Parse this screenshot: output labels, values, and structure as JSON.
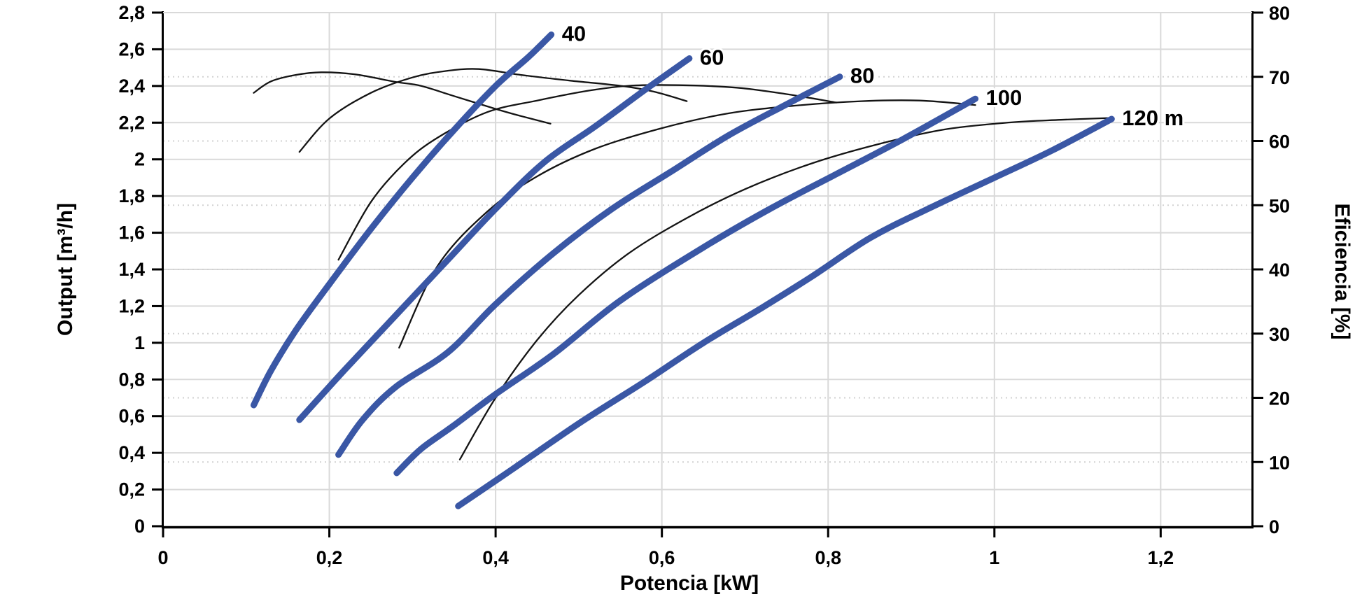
{
  "style": {
    "background": "#ffffff",
    "head_curve_color": "#3a57a5",
    "efficiency_curve_color": "#141414",
    "grid_solid_color": "#d9d9d9",
    "grid_dotted_color": "#d2d2d2",
    "axis_color": "#000000",
    "text_color": "#000000"
  },
  "chart_data": {
    "type": "line",
    "title": "",
    "xlabel": "Potencia [kW]",
    "ylabel_left": "Output [m³/h]",
    "ylabel_right": "Eficiencia [%]",
    "xlim": [
      0,
      1.31
    ],
    "ylim_left": [
      0,
      2.8
    ],
    "ylim_right": [
      0,
      80
    ],
    "grid": {
      "vertical_solid_step_kw": 0.2,
      "horizontal_solid_step": 0.2,
      "horizontal_dotted_at_right_ticks": true
    },
    "x_ticks": [
      {
        "value": 0,
        "label": "0"
      },
      {
        "value": 0.2,
        "label": "0,2"
      },
      {
        "value": 0.4,
        "label": "0,4"
      },
      {
        "value": 0.6,
        "label": "0,6"
      },
      {
        "value": 0.8,
        "label": "0,8"
      },
      {
        "value": 1,
        "label": "1"
      },
      {
        "value": 1.2,
        "label": "1,2"
      }
    ],
    "y_ticks_left": [
      {
        "value": 0,
        "label": "0"
      },
      {
        "value": 0.2,
        "label": "0,2"
      },
      {
        "value": 0.4,
        "label": "0,4"
      },
      {
        "value": 0.6,
        "label": "0,6"
      },
      {
        "value": 0.8,
        "label": "0,8"
      },
      {
        "value": 1,
        "label": "1"
      },
      {
        "value": 1.2,
        "label": "1,2"
      },
      {
        "value": 1.4,
        "label": "1,4"
      },
      {
        "value": 1.6,
        "label": "1,6"
      },
      {
        "value": 1.8,
        "label": "1,8"
      },
      {
        "value": 2,
        "label": "2"
      },
      {
        "value": 2.2,
        "label": "2,2"
      },
      {
        "value": 2.4,
        "label": "2,4"
      },
      {
        "value": 2.6,
        "label": "2,6"
      },
      {
        "value": 2.8,
        "label": "2,8"
      }
    ],
    "y_ticks_right": [
      {
        "value": 0,
        "label": "0"
      },
      {
        "value": 10,
        "label": "10"
      },
      {
        "value": 20,
        "label": "20"
      },
      {
        "value": 30,
        "label": "30"
      },
      {
        "value": 40,
        "label": "40"
      },
      {
        "value": 50,
        "label": "50"
      },
      {
        "value": 60,
        "label": "60"
      },
      {
        "value": 70,
        "label": "70"
      },
      {
        "value": 80,
        "label": "80"
      }
    ],
    "head_curves": [
      {
        "name": "40",
        "label": "40",
        "points": [
          [
            0.109,
            0.66
          ],
          [
            0.13,
            0.85
          ],
          [
            0.16,
            1.07
          ],
          [
            0.2,
            1.32
          ],
          [
            0.25,
            1.62
          ],
          [
            0.3,
            1.9
          ],
          [
            0.35,
            2.16
          ],
          [
            0.4,
            2.4
          ],
          [
            0.44,
            2.56
          ],
          [
            0.467,
            2.68
          ]
        ]
      },
      {
        "name": "60",
        "label": "60",
        "points": [
          [
            0.164,
            0.58
          ],
          [
            0.22,
            0.86
          ],
          [
            0.28,
            1.15
          ],
          [
            0.34,
            1.44
          ],
          [
            0.4,
            1.73
          ],
          [
            0.46,
            1.99
          ],
          [
            0.52,
            2.18
          ],
          [
            0.58,
            2.38
          ],
          [
            0.633,
            2.55
          ]
        ]
      },
      {
        "name": "80",
        "label": "80",
        "points": [
          [
            0.211,
            0.39
          ],
          [
            0.24,
            0.58
          ],
          [
            0.28,
            0.76
          ],
          [
            0.343,
            0.95
          ],
          [
            0.4,
            1.21
          ],
          [
            0.47,
            1.49
          ],
          [
            0.54,
            1.73
          ],
          [
            0.61,
            1.93
          ],
          [
            0.68,
            2.13
          ],
          [
            0.75,
            2.3
          ],
          [
            0.814,
            2.45
          ]
        ]
      },
      {
        "name": "100",
        "label": "100",
        "points": [
          [
            0.281,
            0.29
          ],
          [
            0.31,
            0.42
          ],
          [
            0.35,
            0.55
          ],
          [
            0.4,
            0.72
          ],
          [
            0.47,
            0.94
          ],
          [
            0.55,
            1.23
          ],
          [
            0.65,
            1.52
          ],
          [
            0.73,
            1.73
          ],
          [
            0.81,
            1.92
          ],
          [
            0.89,
            2.11
          ],
          [
            0.977,
            2.33
          ]
        ]
      },
      {
        "name": "120",
        "label": "120 m",
        "points": [
          [
            0.355,
            0.11
          ],
          [
            0.42,
            0.31
          ],
          [
            0.5,
            0.56
          ],
          [
            0.58,
            0.79
          ],
          [
            0.65,
            1.0
          ],
          [
            0.72,
            1.19
          ],
          [
            0.78,
            1.36
          ],
          [
            0.85,
            1.57
          ],
          [
            0.92,
            1.73
          ],
          [
            1.0,
            1.9
          ],
          [
            1.07,
            2.05
          ],
          [
            1.141,
            2.22
          ]
        ]
      }
    ],
    "efficiency_curves": [
      {
        "name": "eff-40",
        "head": "40",
        "points_pct": [
          [
            0.109,
            67.5
          ],
          [
            0.13,
            69.3
          ],
          [
            0.16,
            70.3
          ],
          [
            0.19,
            70.7
          ],
          [
            0.23,
            70.4
          ],
          [
            0.28,
            69.2
          ],
          [
            0.31,
            68.6
          ],
          [
            0.35,
            67.0
          ],
          [
            0.4,
            65.0
          ],
          [
            0.43,
            63.9
          ],
          [
            0.466,
            62.7
          ]
        ]
      },
      {
        "name": "eff-60",
        "head": "60",
        "points_pct": [
          [
            0.164,
            58.3
          ],
          [
            0.2,
            63.5
          ],
          [
            0.25,
            67.5
          ],
          [
            0.3,
            69.9
          ],
          [
            0.34,
            70.9
          ],
          [
            0.38,
            71.2
          ],
          [
            0.43,
            70.3
          ],
          [
            0.49,
            69.4
          ],
          [
            0.55,
            68.6
          ],
          [
            0.59,
            67.7
          ],
          [
            0.63,
            66.2
          ]
        ]
      },
      {
        "name": "eff-80",
        "head": "80",
        "points_pct": [
          [
            0.211,
            41.5
          ],
          [
            0.25,
            50.5
          ],
          [
            0.29,
            56.5
          ],
          [
            0.33,
            60.5
          ],
          [
            0.39,
            64.5
          ],
          [
            0.45,
            66.3
          ],
          [
            0.51,
            67.8
          ],
          [
            0.56,
            68.6
          ],
          [
            0.62,
            68.7
          ],
          [
            0.69,
            68.3
          ],
          [
            0.75,
            67.3
          ],
          [
            0.81,
            66.0
          ]
        ]
      },
      {
        "name": "eff-100",
        "head": "100",
        "points_pct": [
          [
            0.284,
            27.8
          ],
          [
            0.33,
            40.5
          ],
          [
            0.39,
            49.0
          ],
          [
            0.45,
            54.5
          ],
          [
            0.52,
            58.8
          ],
          [
            0.6,
            62.0
          ],
          [
            0.68,
            64.3
          ],
          [
            0.76,
            65.5
          ],
          [
            0.84,
            66.2
          ],
          [
            0.91,
            66.3
          ],
          [
            0.977,
            65.6
          ]
        ]
      },
      {
        "name": "eff-120",
        "head": "120",
        "points_pct": [
          [
            0.357,
            10.4
          ],
          [
            0.4,
            20.0
          ],
          [
            0.45,
            29.0
          ],
          [
            0.5,
            36.0
          ],
          [
            0.56,
            42.5
          ],
          [
            0.63,
            48.0
          ],
          [
            0.7,
            52.5
          ],
          [
            0.78,
            56.5
          ],
          [
            0.86,
            59.5
          ],
          [
            0.94,
            61.8
          ],
          [
            1.02,
            62.9
          ],
          [
            1.08,
            63.3
          ],
          [
            1.141,
            63.6
          ]
        ]
      }
    ],
    "legend": {
      "position": "none"
    }
  }
}
